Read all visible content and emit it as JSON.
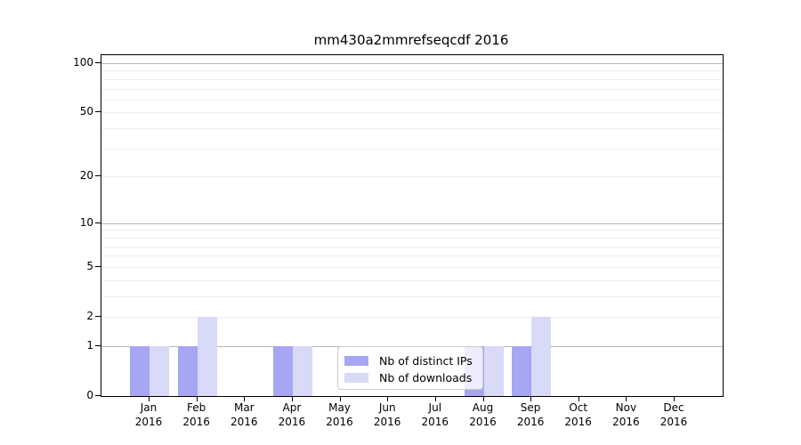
{
  "chart_data": {
    "type": "bar",
    "title": "mm430a2mmrefseqcdf 2016",
    "categories": [
      "Jan",
      "Feb",
      "Mar",
      "Apr",
      "May",
      "Jun",
      "Jul",
      "Aug",
      "Sep",
      "Oct",
      "Nov",
      "Dec"
    ],
    "category_year": "2016",
    "series": [
      {
        "name": "Nb of distinct IPs",
        "color": "#a6a6f2",
        "values": [
          1,
          1,
          0,
          1,
          0,
          0,
          0,
          1,
          1,
          0,
          0,
          0
        ]
      },
      {
        "name": "Nb of downloads",
        "color": "#d9d9f8",
        "values": [
          1,
          2,
          0,
          1,
          0,
          0,
          0,
          1,
          2,
          0,
          0,
          0
        ]
      }
    ],
    "yscale": "log1p",
    "ylim": [
      0,
      112
    ],
    "yticks": [
      0,
      1,
      2,
      5,
      10,
      20,
      50,
      100
    ],
    "major_gridlines": [
      1,
      10,
      100
    ],
    "minor_gridlines": [
      2,
      3,
      4,
      5,
      6,
      7,
      8,
      9,
      20,
      30,
      40,
      50,
      60,
      70,
      80,
      90
    ],
    "grid": "horizontal",
    "legend_position": "lower center-right, inside plot",
    "xlabel": "",
    "ylabel": ""
  }
}
